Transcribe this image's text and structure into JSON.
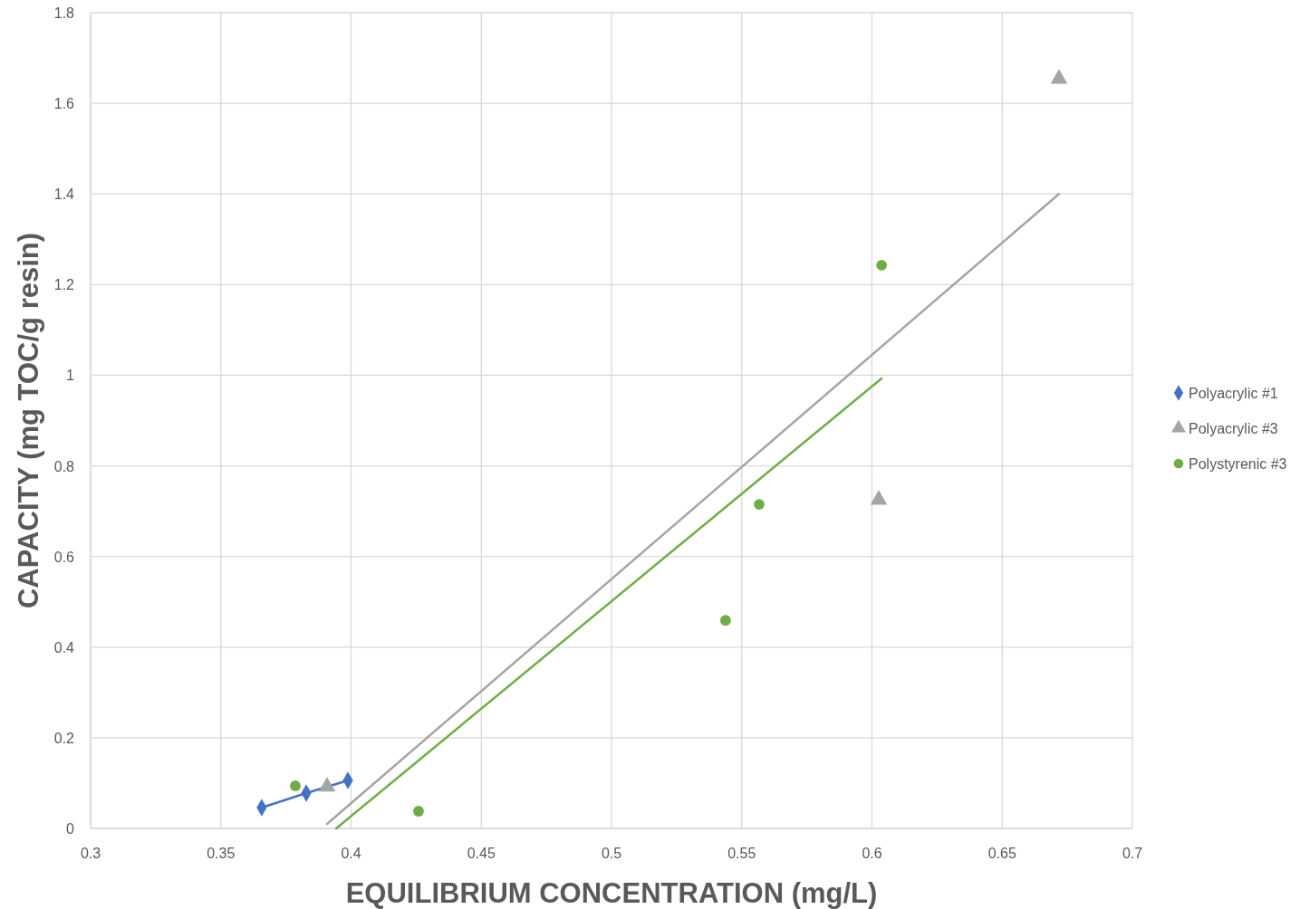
{
  "chart_data": {
    "type": "scatter",
    "xlabel": "EQUILIBRIUM CONCENTRATION (mg/L)",
    "ylabel": "CAPACITY (mg TOC/g resin)",
    "xlim": [
      0.3,
      0.7
    ],
    "xticks": [
      0.3,
      0.35,
      0.4,
      0.45,
      0.5,
      0.55,
      0.6,
      0.65,
      0.7
    ],
    "ylim": [
      0,
      1.8
    ],
    "yticks": [
      0,
      0.2,
      0.4,
      0.6,
      0.8,
      1,
      1.2,
      1.4,
      1.6,
      1.8
    ],
    "grid": true,
    "legend": "right",
    "series": [
      {
        "name": "Polyacrylic #1",
        "type": "line",
        "marker": "diamond",
        "color": "#4472c4",
        "x": [
          0.3657,
          0.3828,
          0.3988
        ],
        "values": [
          0.046,
          0.078,
          0.106
        ]
      },
      {
        "name": "Polyacrylic #3",
        "type": "scatter",
        "marker": "triangle",
        "color": "#a5a5a5",
        "x": [
          0.3908,
          0.6026,
          0.6718
        ],
        "values": [
          0.092,
          0.725,
          1.654
        ]
      },
      {
        "name": "Polystyrenic #3",
        "type": "scatter",
        "marker": "circle",
        "color": "#70ad47",
        "x": [
          0.3786,
          0.4259,
          0.5438,
          0.5567,
          0.6037
        ],
        "values": [
          0.094,
          0.038,
          0.459,
          0.715,
          1.243
        ]
      },
      {
        "type": "line",
        "marker": "none",
        "color": "#a5a5a5",
        "x": [
          0.3908,
          0.6718
        ],
        "values": [
          0.01,
          1.4
        ]
      },
      {
        "type": "line",
        "marker": "none",
        "color": "#70ad47",
        "x": [
          0.3943,
          0.6037
        ],
        "values": [
          0,
          0.993
        ]
      }
    ]
  }
}
